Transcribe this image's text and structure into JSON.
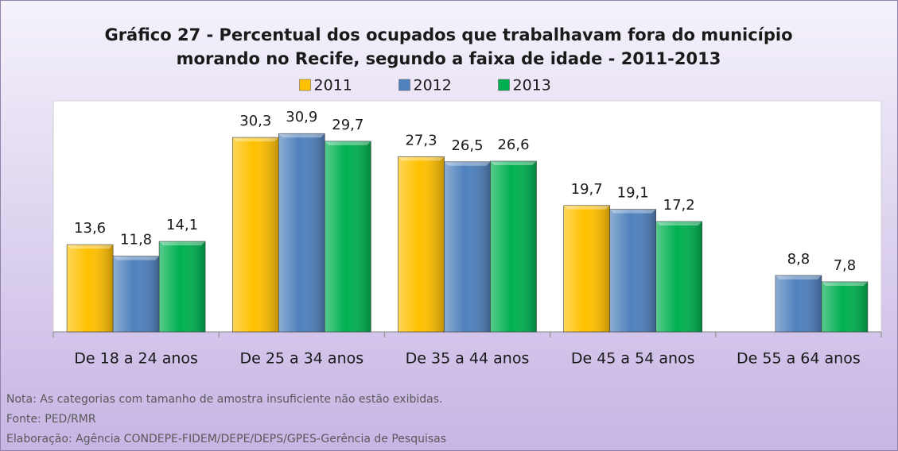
{
  "chart_data": {
    "type": "bar",
    "title": "Gráfico 27 - Percentual dos ocupados que trabalhavam fora do município",
    "subtitle": "morando no Recife, segundo a faixa de idade - 2011-2013",
    "categories": [
      "De 18 a 24 anos",
      "De 25 a 34 anos",
      "De 35 a 44 anos",
      "De 45 a 54 anos",
      "De 55 a 64 anos"
    ],
    "series": [
      {
        "name": "2011",
        "color": "#ffc000",
        "values": [
          13.6,
          30.3,
          27.3,
          19.7,
          null
        ],
        "value_labels": [
          "13,6",
          "30,3",
          "27,3",
          "19,7",
          null
        ]
      },
      {
        "name": "2012",
        "color": "#4f81bd",
        "values": [
          11.8,
          30.9,
          26.5,
          19.1,
          8.8
        ],
        "value_labels": [
          "11,8",
          "30,9",
          "26,5",
          "19,1",
          "8,8"
        ]
      },
      {
        "name": "2013",
        "color": "#00b050",
        "values": [
          14.1,
          29.7,
          26.6,
          17.2,
          7.8
        ],
        "value_labels": [
          "14,1",
          "29,7",
          "26,6",
          "17,2",
          "7,8"
        ]
      }
    ],
    "ylim": [
      0,
      36
    ],
    "legend": "top",
    "notes": [
      "Nota: As categorias com tamanho de amostra insuficiente não estão exibidas.",
      "Fonte: PED/RMR",
      "Elaboração: Agência CONDEPE-FIDEM/DEPE/DEPS/GPES-Gerência de Pesquisas"
    ]
  }
}
